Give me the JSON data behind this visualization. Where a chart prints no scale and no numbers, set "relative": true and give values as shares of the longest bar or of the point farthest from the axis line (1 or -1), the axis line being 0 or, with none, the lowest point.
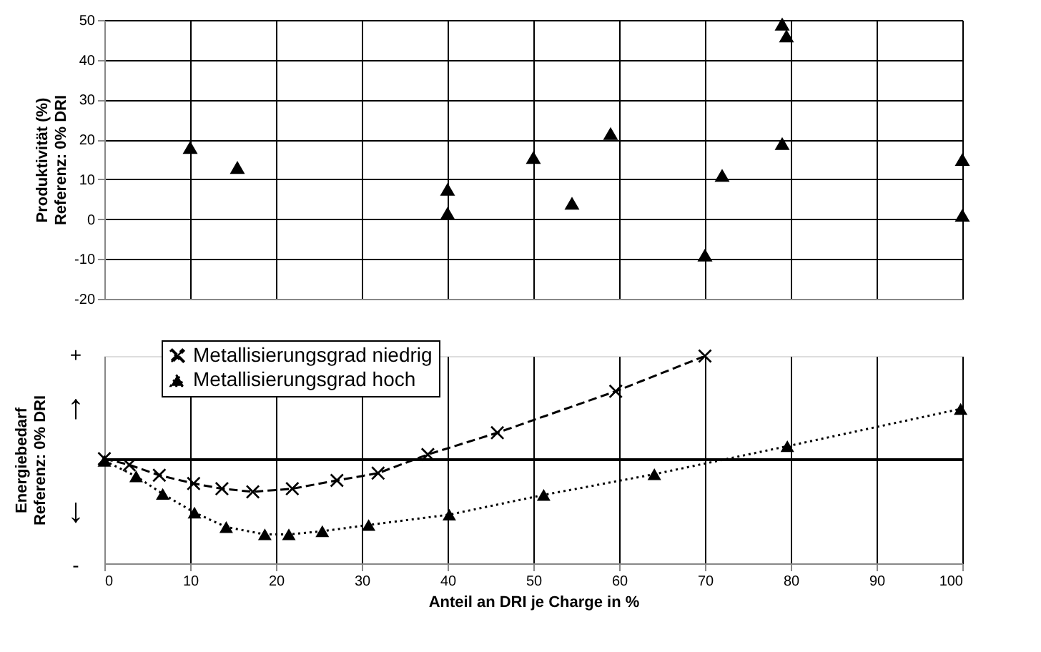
{
  "chart_data": [
    {
      "type": "scatter",
      "ylabel": "Produktivität (%)\nReferenz: 0% DRI",
      "marker": "triangle",
      "color": "#000000",
      "grid": true,
      "tick_labels": "y",
      "x": [
        10,
        15.5,
        40,
        40,
        50,
        54.5,
        59,
        70,
        72,
        79,
        79,
        79.5,
        100,
        100
      ],
      "values": [
        18,
        13,
        7.5,
        1.5,
        15.5,
        4,
        21.5,
        -9,
        11,
        19,
        49,
        46,
        15,
        1
      ],
      "xlim": [
        0,
        100
      ],
      "xticks": [
        0,
        10,
        20,
        30,
        40,
        50,
        60,
        70,
        80,
        90,
        100
      ],
      "ylim": [
        -20,
        50
      ],
      "yticks": [
        -20,
        -10,
        0,
        10,
        20,
        30,
        40,
        50
      ]
    },
    {
      "type": "line",
      "relative": true,
      "xlabel": "Anteil an DRI je Charge in %",
      "ylabel": "Energiebedarf\nReferenz: 0% DRI",
      "grid": "x",
      "legend": "top left",
      "annotations": [
        "+",
        "-",
        "↑",
        "↓"
      ],
      "xlim": [
        0,
        100
      ],
      "xticks": [
        0,
        10,
        20,
        30,
        40,
        50,
        60,
        70,
        80,
        90,
        100
      ],
      "series": [
        {
          "name": "Metallisierungsgrad niedrig",
          "color": "#000000",
          "marker": "cross",
          "line_style": "dashed",
          "x": [
            0,
            2.9,
            6.4,
            10.4,
            13.7,
            17.3,
            21.9,
            27.1,
            31.9,
            37.7,
            45.8,
            59.6,
            70
          ],
          "values": [
            0.01,
            -0.05,
            -0.15,
            -0.23,
            -0.28,
            -0.31,
            -0.28,
            -0.2,
            -0.13,
            0.05,
            0.26,
            0.66,
            1.0
          ]
        },
        {
          "name": "Metallisierungsgrad hoch",
          "color": "#000000",
          "marker": "triangle",
          "line_style": "dotted",
          "x": [
            0,
            3.7,
            6.8,
            10.5,
            14.2,
            18.7,
            21.5,
            25.4,
            30.8,
            40.2,
            51.2,
            64.1,
            79.6,
            99.8
          ],
          "values": [
            -0.01,
            -0.16,
            -0.33,
            -0.51,
            -0.65,
            -0.72,
            -0.72,
            -0.69,
            -0.63,
            -0.53,
            -0.34,
            -0.14,
            0.13,
            0.49
          ]
        }
      ]
    }
  ]
}
